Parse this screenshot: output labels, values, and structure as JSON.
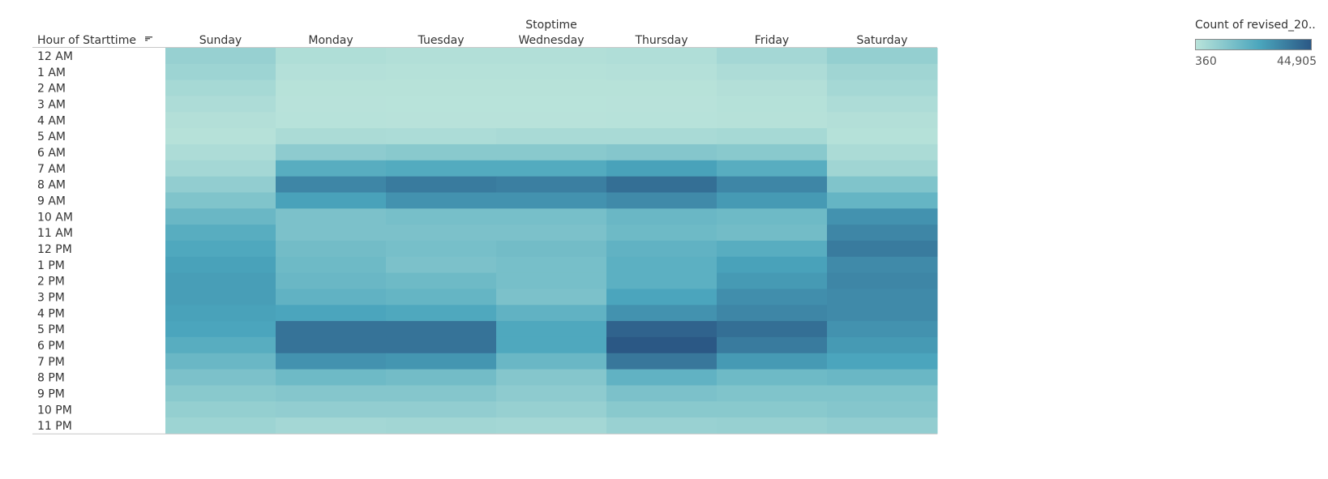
{
  "chart_data": {
    "type": "heatmap",
    "column_group_label": "Stoptime",
    "row_header": "Hour of Starttime",
    "columns": [
      "Sunday",
      "Monday",
      "Tuesday",
      "Wednesday",
      "Thursday",
      "Friday",
      "Saturday"
    ],
    "rows": [
      "12 AM",
      "1 AM",
      "2 AM",
      "3 AM",
      "4 AM",
      "5 AM",
      "6 AM",
      "7 AM",
      "8 AM",
      "9 AM",
      "10 AM",
      "11 AM",
      "12 PM",
      "1 PM",
      "2 PM",
      "3 PM",
      "4 PM",
      "5 PM",
      "6 PM",
      "7 PM",
      "8 PM",
      "9 PM",
      "10 PM",
      "11 PM"
    ],
    "values": [
      [
        8000,
        2500,
        2000,
        2000,
        2300,
        5000,
        8500
      ],
      [
        6500,
        1400,
        1200,
        1200,
        1400,
        3000,
        6000
      ],
      [
        4500,
        900,
        800,
        800,
        900,
        1800,
        4800
      ],
      [
        3000,
        600,
        500,
        500,
        600,
        1200,
        3000
      ],
      [
        1800,
        700,
        600,
        600,
        700,
        1000,
        1800
      ],
      [
        1000,
        3500,
        3200,
        4000,
        4000,
        4500,
        1200
      ],
      [
        3000,
        10000,
        11000,
        11000,
        12000,
        11000,
        3500
      ],
      [
        5000,
        22000,
        23000,
        23000,
        26000,
        22000,
        6000
      ],
      [
        9000,
        33000,
        36000,
        35000,
        39000,
        33000,
        13000
      ],
      [
        13000,
        26000,
        30000,
        30000,
        32000,
        28000,
        19000
      ],
      [
        18000,
        14000,
        15000,
        15000,
        18000,
        17000,
        30000
      ],
      [
        22000,
        14000,
        14000,
        14000,
        17000,
        16000,
        33000
      ],
      [
        24000,
        16000,
        15000,
        16000,
        20000,
        22000,
        36000
      ],
      [
        26000,
        17000,
        14000,
        15000,
        21000,
        26000,
        32000
      ],
      [
        27000,
        18000,
        17000,
        15000,
        21000,
        28000,
        33000
      ],
      [
        27000,
        20000,
        19000,
        14000,
        25000,
        31000,
        32000
      ],
      [
        26000,
        25000,
        24000,
        20000,
        30000,
        33000,
        32000
      ],
      [
        25000,
        38000,
        38000,
        24000,
        42000,
        39000,
        30000
      ],
      [
        22000,
        38000,
        38000,
        24000,
        44905,
        36000,
        28000
      ],
      [
        18000,
        30000,
        29000,
        18000,
        37000,
        28000,
        25000
      ],
      [
        14000,
        17000,
        16000,
        12000,
        20000,
        17000,
        18000
      ],
      [
        11000,
        12000,
        12000,
        10000,
        14000,
        13000,
        13000
      ],
      [
        8500,
        9000,
        9000,
        8000,
        11000,
        11000,
        12000
      ],
      [
        6500,
        5000,
        5500,
        5000,
        7500,
        8000,
        9000
      ]
    ],
    "legend_title": "Count of revised_20..",
    "color_range": [
      360,
      44905
    ],
    "color_range_labels": [
      "360",
      "44,905"
    ],
    "color_scale": [
      "#b9e3da",
      "#2b5885"
    ],
    "sort_icon": "sort-descending-icon"
  }
}
